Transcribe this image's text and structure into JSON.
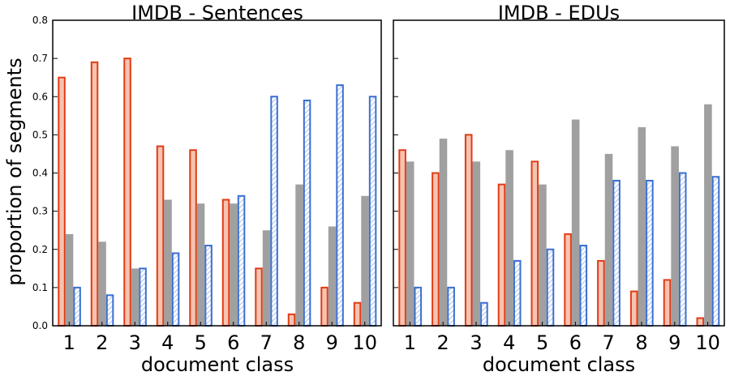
{
  "chart_data": [
    {
      "type": "bar",
      "title": "IMDB - Sentences",
      "xlabel": "document class",
      "ylabel": "proportion of segments",
      "ylim": [
        0,
        0.8
      ],
      "yticks": [
        "0.0",
        "0.1",
        "0.2",
        "0.3",
        "0.4",
        "0.5",
        "0.6",
        "0.7",
        "0.8"
      ],
      "categories": [
        "1",
        "2",
        "3",
        "4",
        "5",
        "6",
        "7",
        "8",
        "9",
        "10"
      ],
      "series": [
        {
          "values": [
            0.65,
            0.69,
            0.7,
            0.47,
            0.46,
            0.33,
            0.15,
            0.03,
            0.1,
            0.06
          ],
          "color": "#e03c14",
          "fill": "#f7c3b1"
        },
        {
          "values": [
            0.24,
            0.22,
            0.15,
            0.33,
            0.32,
            0.32,
            0.25,
            0.37,
            0.26,
            0.34
          ],
          "color": "#a0a0a0",
          "fill": "#a0a0a0"
        },
        {
          "values": [
            0.1,
            0.08,
            0.15,
            0.19,
            0.21,
            0.34,
            0.6,
            0.59,
            0.63,
            0.6
          ],
          "color": "#3a6fd0",
          "fill": "#ffffff"
        }
      ],
      "grid": false
    },
    {
      "type": "bar",
      "title": "IMDB - EDUs",
      "xlabel": "document class",
      "ylim": [
        0,
        0.8
      ],
      "categories": [
        "1",
        "2",
        "3",
        "4",
        "5",
        "6",
        "7",
        "8",
        "9",
        "10"
      ],
      "series": [
        {
          "values": [
            0.46,
            0.4,
            0.5,
            0.37,
            0.43,
            0.24,
            0.17,
            0.09,
            0.12,
            0.02
          ],
          "color": "#e03c14",
          "fill": "#f7c3b1"
        },
        {
          "values": [
            0.43,
            0.49,
            0.43,
            0.46,
            0.37,
            0.54,
            0.45,
            0.52,
            0.47,
            0.58
          ],
          "color": "#a0a0a0",
          "fill": "#a0a0a0"
        },
        {
          "values": [
            0.1,
            0.1,
            0.06,
            0.17,
            0.2,
            0.21,
            0.38,
            0.38,
            0.4,
            0.39
          ],
          "color": "#3a6fd0",
          "fill": "#ffffff"
        }
      ],
      "grid": false
    }
  ]
}
